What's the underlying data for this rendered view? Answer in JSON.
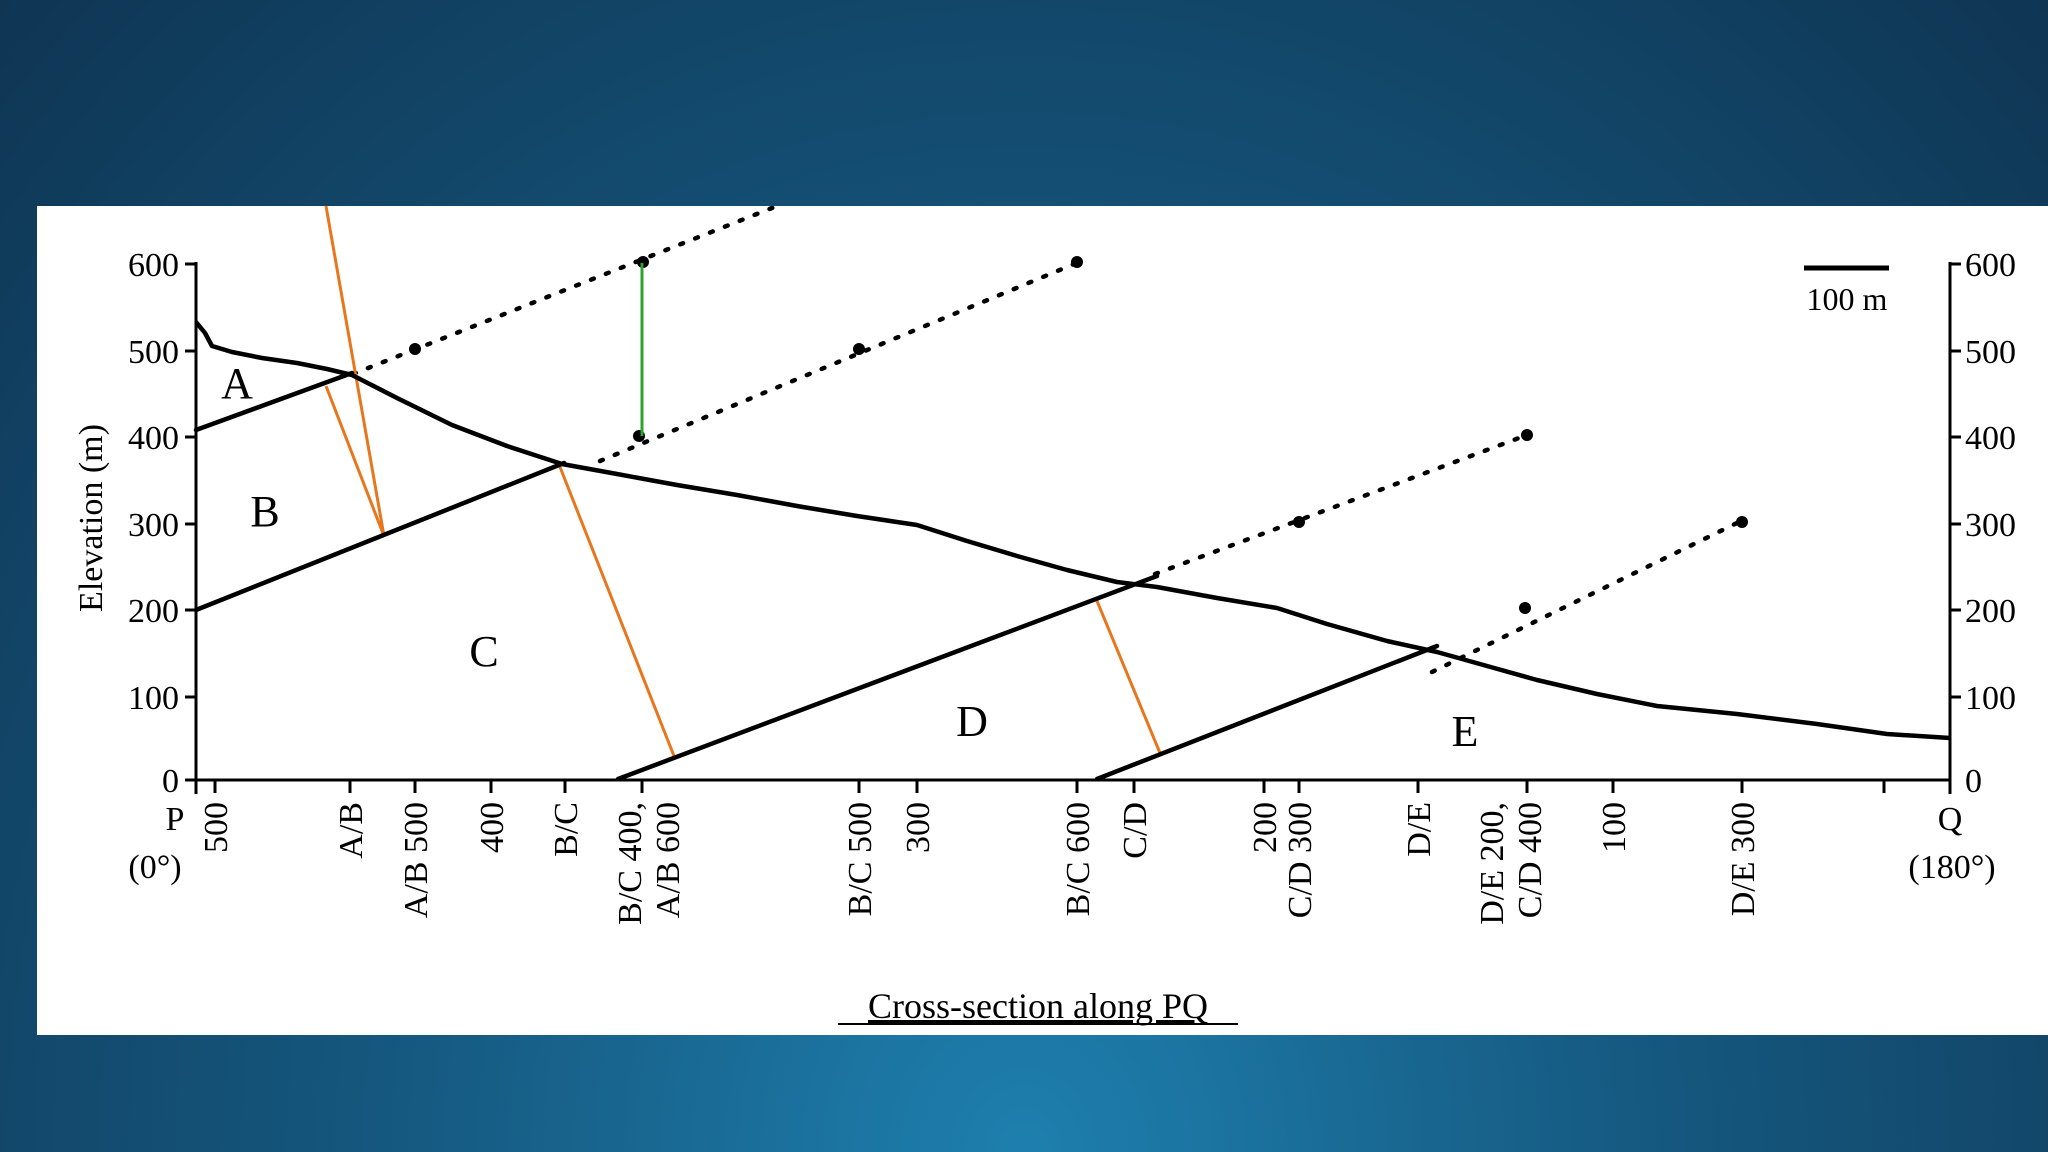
{
  "diagram": {
    "title": "Cross-section along PQ",
    "y_axis_label": "Elevation (m)",
    "y_ticks": [
      "600",
      "500",
      "400",
      "300",
      "200",
      "100",
      "0"
    ],
    "scale_bar_label": "100 m",
    "end_labels": {
      "p": "P",
      "p_angle": "(0°)",
      "q": "Q",
      "q_angle": "(180°)"
    },
    "units": {
      "A": "A",
      "B": "B",
      "C": "C",
      "D": "D",
      "E": "E"
    },
    "x_tick_labels": [
      [
        "500"
      ],
      [
        "A/B"
      ],
      [
        "A/B 500"
      ],
      [
        "400"
      ],
      [
        "B/C"
      ],
      [
        "B/C 400,",
        "A/B 600"
      ],
      [
        "B/C 500"
      ],
      [
        "300"
      ],
      [
        "B/C 600"
      ],
      [
        "C/D"
      ],
      [
        "200"
      ],
      [
        "C/D 300"
      ],
      [
        "D/E"
      ],
      [
        "D/E 200,",
        "C/D 400"
      ],
      [
        "100"
      ],
      [
        "D/E 300"
      ]
    ],
    "colors": {
      "line": "#000000",
      "thickness_lines": "#e8761c",
      "vertical_marker": "#2ea12e"
    }
  }
}
